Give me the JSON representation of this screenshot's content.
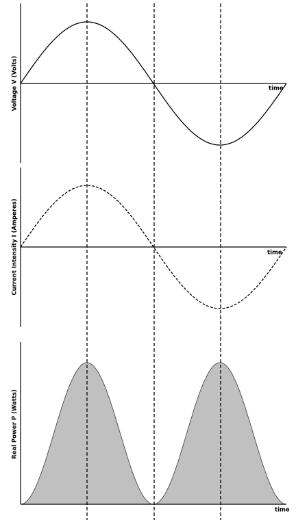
{
  "panels": [
    {
      "axis_label": "Voltage V (Volts)",
      "time_label": "time"
    },
    {
      "axis_label": "Current Intensity I (Amperes)",
      "time_label": "time"
    },
    {
      "axis_label": "Real Power P (Watts)",
      "time_label": "time"
    }
  ]
}
